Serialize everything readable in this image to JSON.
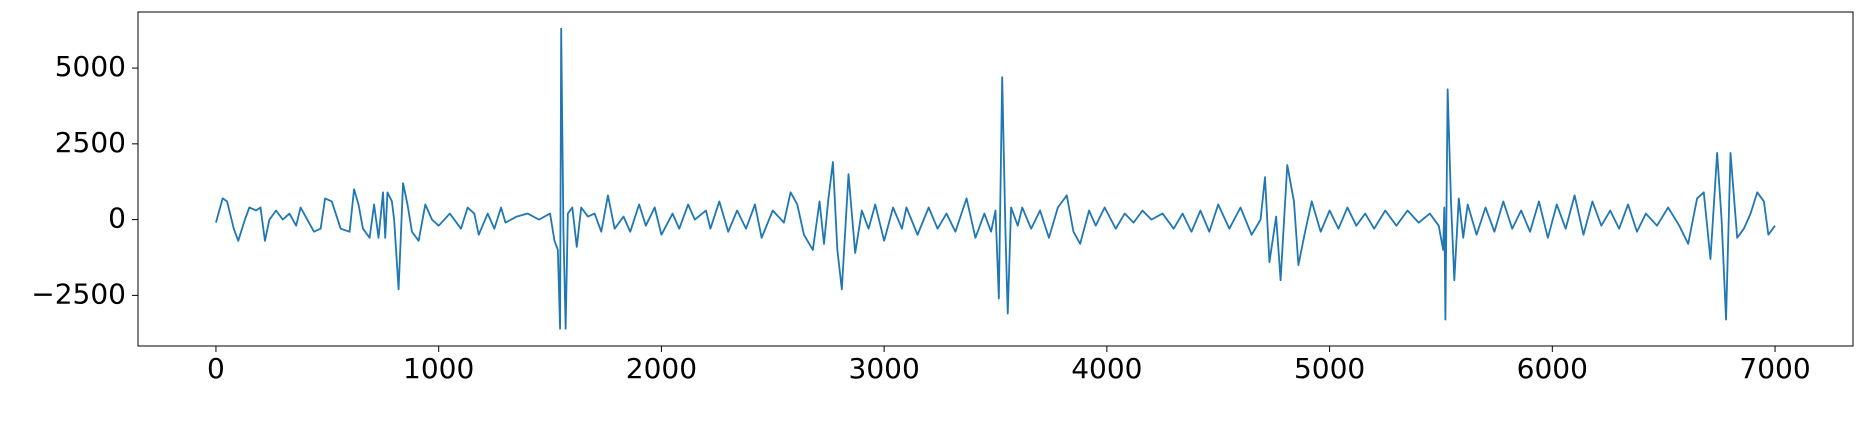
{
  "chart_data": {
    "type": "line",
    "x": [
      0,
      30,
      50,
      80,
      100,
      130,
      150,
      180,
      200,
      220,
      240,
      270,
      300,
      330,
      360,
      380,
      410,
      440,
      470,
      490,
      520,
      560,
      600,
      620,
      640,
      660,
      690,
      710,
      730,
      750,
      760,
      770,
      790,
      800,
      820,
      840,
      860,
      880,
      910,
      940,
      970,
      1000,
      1050,
      1100,
      1130,
      1160,
      1180,
      1220,
      1250,
      1280,
      1300,
      1350,
      1400,
      1450,
      1500,
      1520,
      1535,
      1545,
      1550,
      1560,
      1570,
      1580,
      1600,
      1620,
      1640,
      1670,
      1700,
      1730,
      1760,
      1790,
      1830,
      1860,
      1900,
      1930,
      1970,
      2000,
      2050,
      2080,
      2120,
      2150,
      2200,
      2220,
      2260,
      2300,
      2340,
      2380,
      2420,
      2450,
      2500,
      2550,
      2580,
      2610,
      2640,
      2680,
      2710,
      2730,
      2750,
      2770,
      2790,
      2810,
      2840,
      2870,
      2900,
      2930,
      2960,
      3000,
      3040,
      3080,
      3100,
      3150,
      3200,
      3240,
      3280,
      3320,
      3370,
      3410,
      3450,
      3480,
      3500,
      3515,
      3530,
      3545,
      3555,
      3570,
      3600,
      3620,
      3660,
      3700,
      3740,
      3780,
      3820,
      3850,
      3880,
      3920,
      3950,
      3990,
      4040,
      4080,
      4120,
      4160,
      4200,
      4250,
      4300,
      4340,
      4380,
      4420,
      4460,
      4500,
      4550,
      4600,
      4650,
      4690,
      4710,
      4730,
      4760,
      4780,
      4810,
      4840,
      4860,
      4890,
      4920,
      4960,
      5000,
      5040,
      5080,
      5120,
      5160,
      5200,
      5250,
      5300,
      5350,
      5400,
      5450,
      5490,
      5510,
      5515,
      5520,
      5530,
      5545,
      5560,
      5580,
      5600,
      5620,
      5660,
      5700,
      5740,
      5780,
      5820,
      5860,
      5900,
      5940,
      5980,
      6020,
      6060,
      6100,
      6140,
      6180,
      6220,
      6260,
      6300,
      6340,
      6380,
      6420,
      6470,
      6520,
      6570,
      6610,
      6650,
      6680,
      6710,
      6740,
      6760,
      6780,
      6800,
      6830,
      6860,
      6890,
      6920,
      6950,
      6970,
      7000
    ],
    "series": [
      {
        "color": "#1f77b4",
        "values": [
          -100,
          700,
          600,
          -300,
          -700,
          0,
          400,
          300,
          400,
          -700,
          0,
          300,
          0,
          200,
          -200,
          400,
          0,
          -400,
          -300,
          700,
          600,
          -300,
          -400,
          1000,
          500,
          -300,
          -600,
          500,
          -600,
          900,
          -600,
          900,
          600,
          0,
          -2300,
          1200,
          500,
          -400,
          -700,
          500,
          0,
          -200,
          200,
          -300,
          400,
          200,
          -500,
          200,
          -300,
          400,
          -100,
          100,
          200,
          0,
          200,
          -700,
          -1000,
          -3600,
          6300,
          -300,
          -3600,
          200,
          400,
          -900,
          400,
          100,
          200,
          -400,
          800,
          -300,
          100,
          -400,
          500,
          -200,
          400,
          -500,
          200,
          -300,
          500,
          0,
          300,
          -300,
          600,
          -400,
          300,
          -300,
          500,
          -600,
          300,
          -100,
          900,
          500,
          -500,
          -1000,
          600,
          -800,
          700,
          1900,
          -1000,
          -2300,
          1500,
          -1100,
          300,
          -300,
          500,
          -700,
          400,
          -300,
          400,
          -500,
          400,
          -300,
          200,
          -400,
          700,
          -600,
          200,
          -400,
          300,
          -2600,
          4700,
          -500,
          -3100,
          400,
          -200,
          400,
          -300,
          300,
          -600,
          400,
          800,
          -400,
          -800,
          300,
          -200,
          400,
          -300,
          200,
          -100,
          300,
          0,
          200,
          -300,
          200,
          -400,
          300,
          -400,
          500,
          -300,
          400,
          -500,
          0,
          1400,
          -1400,
          100,
          -2000,
          1800,
          600,
          -1500,
          -400,
          600,
          -400,
          300,
          -300,
          400,
          -200,
          200,
          -300,
          300,
          -200,
          300,
          -100,
          200,
          -200,
          -1000,
          400,
          -3300,
          4300,
          600,
          -2000,
          700,
          -600,
          500,
          -500,
          400,
          -400,
          600,
          -300,
          300,
          -400,
          600,
          -600,
          500,
          -300,
          800,
          -500,
          600,
          -200,
          300,
          -300,
          500,
          -400,
          200,
          -200,
          400,
          -200,
          -800,
          700,
          900,
          -1300,
          2200,
          0,
          -3300,
          2200,
          -600,
          -300,
          200,
          900,
          600,
          -500,
          -200
        ]
      }
    ],
    "xlim": [
      -350,
      7350
    ],
    "ylim": [
      -4170,
      6850
    ],
    "xticks": [
      0,
      1000,
      2000,
      3000,
      4000,
      5000,
      6000,
      7000
    ],
    "yticks": [
      {
        "value": -2500,
        "label": "−2500"
      },
      0,
      2500,
      5000
    ]
  }
}
